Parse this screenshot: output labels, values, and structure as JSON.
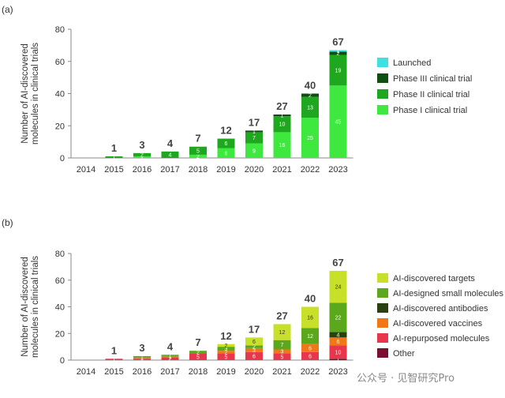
{
  "watermark": "公众号 · 见智研究Pro",
  "chart_data": [
    {
      "type": "bar",
      "stacked": true,
      "panel": "(a)",
      "ylabel_lines": [
        "Number of AI-discovered",
        "molecules in clinical trials"
      ],
      "ylim": [
        0,
        80
      ],
      "yticks": [
        0,
        20,
        40,
        60,
        80
      ],
      "categories": [
        "2014",
        "2015",
        "2016",
        "2017",
        "2018",
        "2019",
        "2020",
        "2021",
        "2022",
        "2023"
      ],
      "totals": [
        null,
        "1",
        "3",
        "4",
        "7",
        "12",
        "17",
        "27",
        "40",
        "67"
      ],
      "legend_position": "right",
      "series": [
        {
          "name": "Phase I clinical trial",
          "color": "#3ee83e",
          "values": [
            0,
            0,
            1,
            0,
            2,
            6,
            9,
            16,
            25,
            45
          ],
          "labels": [
            "",
            "",
            "1",
            "",
            "2",
            "6",
            "9",
            "16",
            "25",
            "45"
          ]
        },
        {
          "name": "Phase II clinical trial",
          "color": "#1fa81f",
          "values": [
            0,
            1,
            2,
            4,
            5,
            6,
            7,
            10,
            13,
            19
          ],
          "labels": [
            "",
            "1",
            "2",
            "4",
            "5",
            "6",
            "7",
            "10",
            "13",
            "19"
          ]
        },
        {
          "name": "Phase III clinical trial",
          "color": "#0f4f0f",
          "values": [
            0,
            0,
            0,
            0,
            0,
            0,
            1,
            1,
            2,
            2
          ],
          "labels": [
            "",
            "",
            "",
            "",
            "",
            "",
            "1",
            "1",
            "2",
            "2"
          ]
        },
        {
          "name": "Launched",
          "color": "#3ee0e0",
          "values": [
            0,
            0,
            0,
            0,
            0,
            0,
            0,
            0,
            0,
            1
          ],
          "labels": [
            "",
            "",
            "",
            "",
            "",
            "",
            "",
            "",
            "",
            "1"
          ]
        }
      ]
    },
    {
      "type": "bar",
      "stacked": true,
      "panel": "(b)",
      "ylabel_lines": [
        "Number of AI-discovered",
        "molecules in clinical trials"
      ],
      "ylim": [
        0,
        80
      ],
      "yticks": [
        0,
        20,
        40,
        60,
        80
      ],
      "categories": [
        "2014",
        "2015",
        "2016",
        "2017",
        "2018",
        "2019",
        "2020",
        "2021",
        "2022",
        "2023"
      ],
      "totals": [
        null,
        "1",
        "3",
        "4",
        "7",
        "12",
        "17",
        "27",
        "40",
        "67"
      ],
      "legend_position": "right",
      "series": [
        {
          "name": "Other",
          "color": "#7a1030",
          "values": [
            0,
            0,
            0,
            0,
            0,
            0,
            0,
            0,
            0,
            1
          ],
          "labels": [
            "",
            "",
            "",
            "",
            "",
            "",
            "",
            "",
            "",
            "1"
          ]
        },
        {
          "name": "AI-repurposed molecules",
          "color": "#e8364a",
          "values": [
            0,
            1,
            1,
            2,
            5,
            5,
            6,
            5,
            6,
            10
          ],
          "labels": [
            "",
            "1",
            "1",
            "2",
            "5",
            "5",
            "6",
            "5",
            "6",
            "10"
          ]
        },
        {
          "name": "AI-discovered vaccines",
          "color": "#f07818",
          "values": [
            0,
            0,
            1,
            1,
            0,
            2,
            3,
            3,
            6,
            6
          ],
          "labels": [
            "",
            "",
            "1",
            "1",
            "",
            "2",
            "3",
            "3",
            "6",
            "6"
          ]
        },
        {
          "name": "AI-discovered antibodies",
          "color": "#2a4010",
          "values": [
            0,
            0,
            0,
            0,
            0,
            0,
            0,
            0,
            0,
            4
          ],
          "labels": [
            "",
            "",
            "",
            "",
            "",
            "",
            "",
            "",
            "",
            "4"
          ]
        },
        {
          "name": "AI-designed small molecules",
          "color": "#5ca81c",
          "values": [
            0,
            0,
            1,
            1,
            2,
            3,
            2,
            7,
            12,
            22
          ],
          "labels": [
            "",
            "",
            "1",
            "1",
            "2",
            "3",
            "2",
            "7",
            "12",
            "22"
          ]
        },
        {
          "name": "AI-discovered targets",
          "color": "#c8e02a",
          "values": [
            0,
            0,
            0,
            0,
            0,
            2,
            6,
            12,
            16,
            24
          ],
          "labels": [
            "",
            "",
            "",
            "",
            "",
            "2",
            "6",
            "12",
            "16",
            "24"
          ]
        }
      ]
    }
  ]
}
